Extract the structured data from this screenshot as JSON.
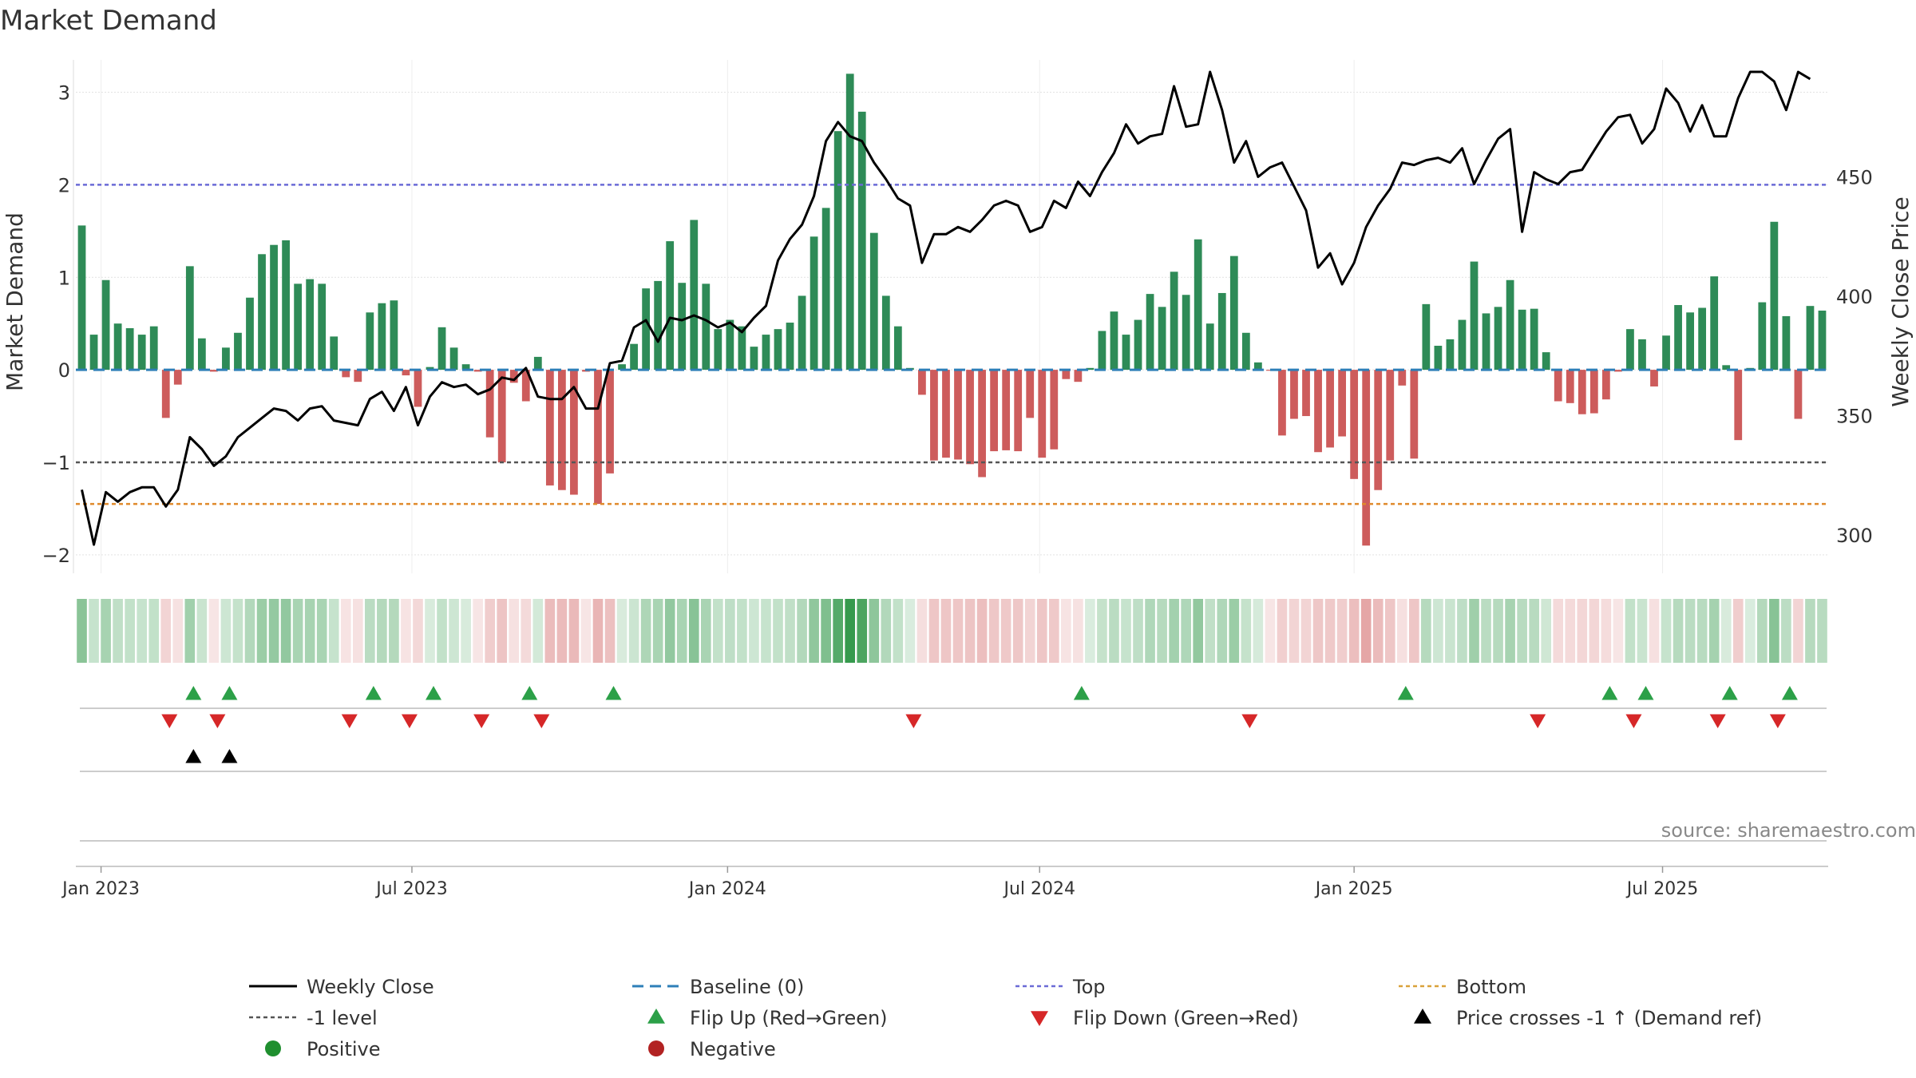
{
  "chart_data": {
    "type": "bar",
    "title": "Market Demand",
    "ylabel": "Market Demand",
    "y2label": "Weekly Close Price",
    "ylim": [
      -2.2,
      3.35
    ],
    "y2lim": [
      284,
      499
    ],
    "y_ticks": [
      -2,
      -1,
      0,
      1,
      2,
      3
    ],
    "y_tick_labels": [
      "−2",
      "−1",
      "0",
      "1",
      "2",
      "3"
    ],
    "y2_ticks": [
      300,
      350,
      400,
      450
    ],
    "y2_tick_labels": [
      "300",
      "350",
      "400",
      "450"
    ],
    "x_ticks": [
      {
        "week": 1.6,
        "label": "Jan 2023"
      },
      {
        "week": 27.5,
        "label": "Jul 2023"
      },
      {
        "week": 53.8,
        "label": "Jan 2024"
      },
      {
        "week": 79.8,
        "label": "Jul 2024"
      },
      {
        "week": 106,
        "label": "Jan 2025"
      },
      {
        "week": 131.7,
        "label": "Jul 2025"
      }
    ],
    "reference_lines": {
      "baseline": 0,
      "top": 2,
      "minus_one": -1,
      "bottom": -1.45
    },
    "demand": [
      1.56,
      0.38,
      0.97,
      0.5,
      0.45,
      0.38,
      0.47,
      -0.52,
      -0.16,
      1.12,
      0.34,
      -0.02,
      0.24,
      0.4,
      0.78,
      1.25,
      1.35,
      1.4,
      0.93,
      0.98,
      0.93,
      0.36,
      -0.08,
      -0.13,
      0.62,
      0.72,
      0.75,
      -0.06,
      -0.4,
      0.03,
      0.46,
      0.24,
      0.06,
      -0.02,
      -0.73,
      -1.0,
      -0.14,
      -0.34,
      0.14,
      -1.25,
      -1.3,
      -1.35,
      -0.02,
      -1.45,
      -1.12,
      0.06,
      0.28,
      0.88,
      0.96,
      1.39,
      0.94,
      1.62,
      0.93,
      0.44,
      0.54,
      0.47,
      0.25,
      0.38,
      0.44,
      0.51,
      0.8,
      1.44,
      1.75,
      2.58,
      3.2,
      2.79,
      1.48,
      0.8,
      0.47,
      0.02,
      -0.27,
      -0.98,
      -0.95,
      -0.97,
      -1.02,
      -1.16,
      -0.88,
      -0.87,
      -0.88,
      -0.52,
      -0.95,
      -0.86,
      -0.1,
      -0.13,
      0.02,
      0.42,
      0.63,
      0.38,
      0.54,
      0.82,
      0.68,
      1.06,
      0.81,
      1.41,
      0.5,
      0.83,
      1.23,
      0.4,
      0.08,
      -0.01,
      -0.71,
      -0.53,
      -0.5,
      -0.89,
      -0.84,
      -0.72,
      -1.18,
      -1.9,
      -1.3,
      -0.98,
      -0.17,
      -0.96,
      0.71,
      0.26,
      0.33,
      0.54,
      1.17,
      0.61,
      0.68,
      0.97,
      0.65,
      0.66,
      0.19,
      -0.34,
      -0.36,
      -0.48,
      -0.47,
      -0.32,
      -0.02,
      0.44,
      0.33,
      -0.18,
      0.37,
      0.7,
      0.62,
      0.67,
      1.01,
      0.05,
      -0.76,
      0.02,
      0.73,
      1.6,
      0.58,
      -0.53,
      0.69,
      0.64
    ],
    "price": [
      319,
      296,
      318,
      314,
      318,
      320,
      320,
      312,
      319,
      341,
      336,
      329,
      333,
      341,
      345,
      349,
      353,
      352,
      348,
      353,
      354,
      348,
      347,
      346,
      357,
      360,
      352,
      362,
      346,
      358,
      364,
      362,
      363,
      359,
      361,
      366,
      365,
      370,
      358,
      357,
      357,
      362,
      353,
      353,
      372,
      373,
      387,
      390,
      381,
      391,
      390,
      392,
      390,
      387,
      389,
      385,
      391,
      396,
      415,
      424,
      430,
      442,
      465,
      473,
      467,
      465,
      456,
      449,
      441,
      438,
      414,
      426,
      426,
      429,
      427,
      432,
      438,
      440,
      438,
      427,
      429,
      440,
      437,
      448,
      442,
      452,
      460,
      472,
      464,
      467,
      468,
      488,
      471,
      472,
      494,
      478,
      456,
      465,
      450,
      454,
      456,
      446,
      436,
      412,
      418,
      405,
      414,
      429,
      438,
      445,
      456,
      455,
      457,
      458,
      456,
      462,
      447,
      457,
      466,
      470,
      427,
      452,
      449,
      447,
      452,
      453,
      461,
      469,
      475,
      476,
      464,
      470,
      487,
      481,
      469,
      480,
      467,
      467,
      483,
      494,
      494,
      490,
      478,
      494,
      491
    ],
    "color_strip": "color intensity of strip mirrors demand value (green positive, red negative)",
    "markers": {
      "flip_up_weeks": [
        9.3,
        12.3,
        24.3,
        29.3,
        37.3,
        44.3,
        83.3,
        110.3,
        127.3,
        130.3,
        137.3,
        142.3
      ],
      "flip_down_weeks": [
        7.3,
        11.3,
        22.3,
        27.3,
        33.3,
        38.3,
        69.3,
        97.3,
        121.3,
        129.3,
        136.3,
        141.3
      ],
      "price_cross_weeks": [
        9.3,
        12.3
      ]
    },
    "source": "source: sharemaestro.com",
    "legend": [
      {
        "key": "weekly_close",
        "label": "Weekly Close",
        "color": "#000000"
      },
      {
        "key": "baseline",
        "label": "Baseline (0)",
        "color": "#2e7fb8"
      },
      {
        "key": "top",
        "label": "Top",
        "color": "#6b6bd6"
      },
      {
        "key": "bottom",
        "label": "Bottom",
        "color": "#d9a23a"
      },
      {
        "key": "minus_one",
        "label": "-1 level",
        "color": "#555555"
      },
      {
        "key": "flip_up",
        "label": "Flip Up (Red→Green)",
        "color": "#2ca048"
      },
      {
        "key": "flip_down",
        "label": "Flip Down (Green→Red)",
        "color": "#d62728"
      },
      {
        "key": "price_cross",
        "label": "Price crosses -1 ↑ (Demand ref)",
        "color": "#000000"
      },
      {
        "key": "positive",
        "label": "Positive",
        "color": "#1f8f2f"
      },
      {
        "key": "negative",
        "label": "Negative",
        "color": "#b22222"
      }
    ],
    "legend_position": "bottom-center",
    "colors": {
      "positive_bar": "#2e8b57",
      "negative_bar": "#cd5c5c"
    }
  }
}
